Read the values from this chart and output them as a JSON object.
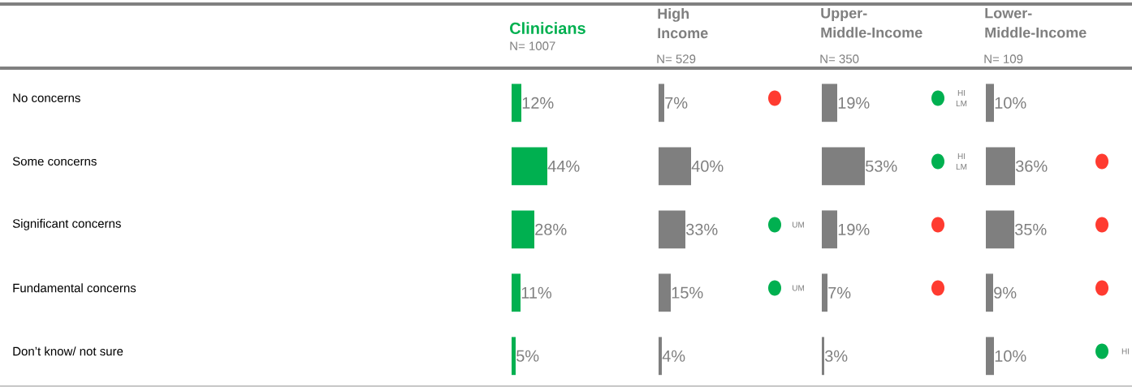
{
  "chart_data": [
    {
      "type": "bar",
      "orientation": "horizontal",
      "title": "Clinicians",
      "subtitle": "N= 1007",
      "categories": [
        "No concerns",
        "Some concerns",
        "Significant concerns",
        "Fundamental concerns",
        "Don’t know/ not sure"
      ],
      "tick_labels": "y",
      "series": [
        {
          "color": "#00b050",
          "values": [
            12,
            44,
            28,
            11,
            5
          ],
          "value_labels": [
            "12%",
            "44%",
            "28%",
            "11%",
            "5%"
          ]
        }
      ]
    },
    {
      "type": "bar",
      "orientation": "horizontal",
      "title": "High Income",
      "subtitle": "N= 529",
      "categories": [
        null,
        null,
        null,
        null,
        null
      ],
      "tick_labels": false,
      "series": [
        {
          "color": "#7f7f7f",
          "values": [
            7,
            40,
            33,
            15,
            4
          ],
          "value_labels": [
            "7%",
            "40%",
            "33%",
            "15%",
            "4%"
          ]
        }
      ],
      "annotations": [
        "UM",
        "UM"
      ]
    },
    {
      "type": "bar",
      "orientation": "horizontal",
      "title": "Upper-Middle-Income",
      "subtitle": "N= 350",
      "categories": [
        null,
        null,
        null,
        null,
        null
      ],
      "tick_labels": false,
      "series": [
        {
          "color": "#7f7f7f",
          "values": [
            19,
            53,
            19,
            7,
            3
          ],
          "value_labels": [
            "19%",
            "53%",
            "19%",
            "7%",
            "3%"
          ]
        }
      ],
      "annotations": [
        "HI LM",
        "HI LM"
      ]
    },
    {
      "type": "bar",
      "orientation": "horizontal",
      "title": "Lower-Middle-Income",
      "subtitle": "N= 109",
      "categories": [
        null,
        null,
        null,
        null,
        null
      ],
      "tick_labels": false,
      "series": [
        {
          "color": "#7f7f7f",
          "values": [
            10,
            36,
            35,
            9,
            10
          ],
          "value_labels": [
            "10%",
            "36%",
            "35%",
            "9%",
            "10%"
          ]
        }
      ],
      "annotations": [
        "HI"
      ]
    }
  ]
}
